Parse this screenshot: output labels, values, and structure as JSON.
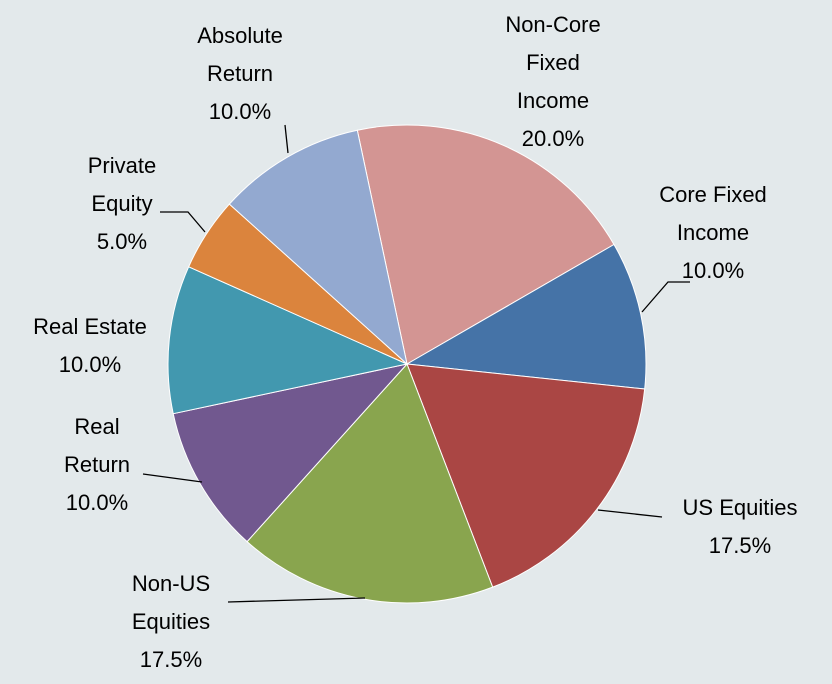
{
  "chart_data": {
    "type": "pie",
    "categories": [
      "Non-Core Fixed Income",
      "Core Fixed Income",
      "US Equities",
      "Non-US Equities",
      "Real Return",
      "Real Estate",
      "Private Equity",
      "Absolute Return"
    ],
    "values": [
      20,
      10,
      17.5,
      17.5,
      10,
      10,
      5,
      10
    ],
    "value_labels": [
      "20.0%",
      "10.0%",
      "17.5%",
      "17.5%",
      "10.0%",
      "10.0%",
      "5.0%",
      "10.0%"
    ],
    "colors": [
      "#d39593",
      "#4573a7",
      "#aa4644",
      "#89a54e",
      "#71588f",
      "#4298af",
      "#db843d",
      "#93a9d0"
    ]
  }
}
